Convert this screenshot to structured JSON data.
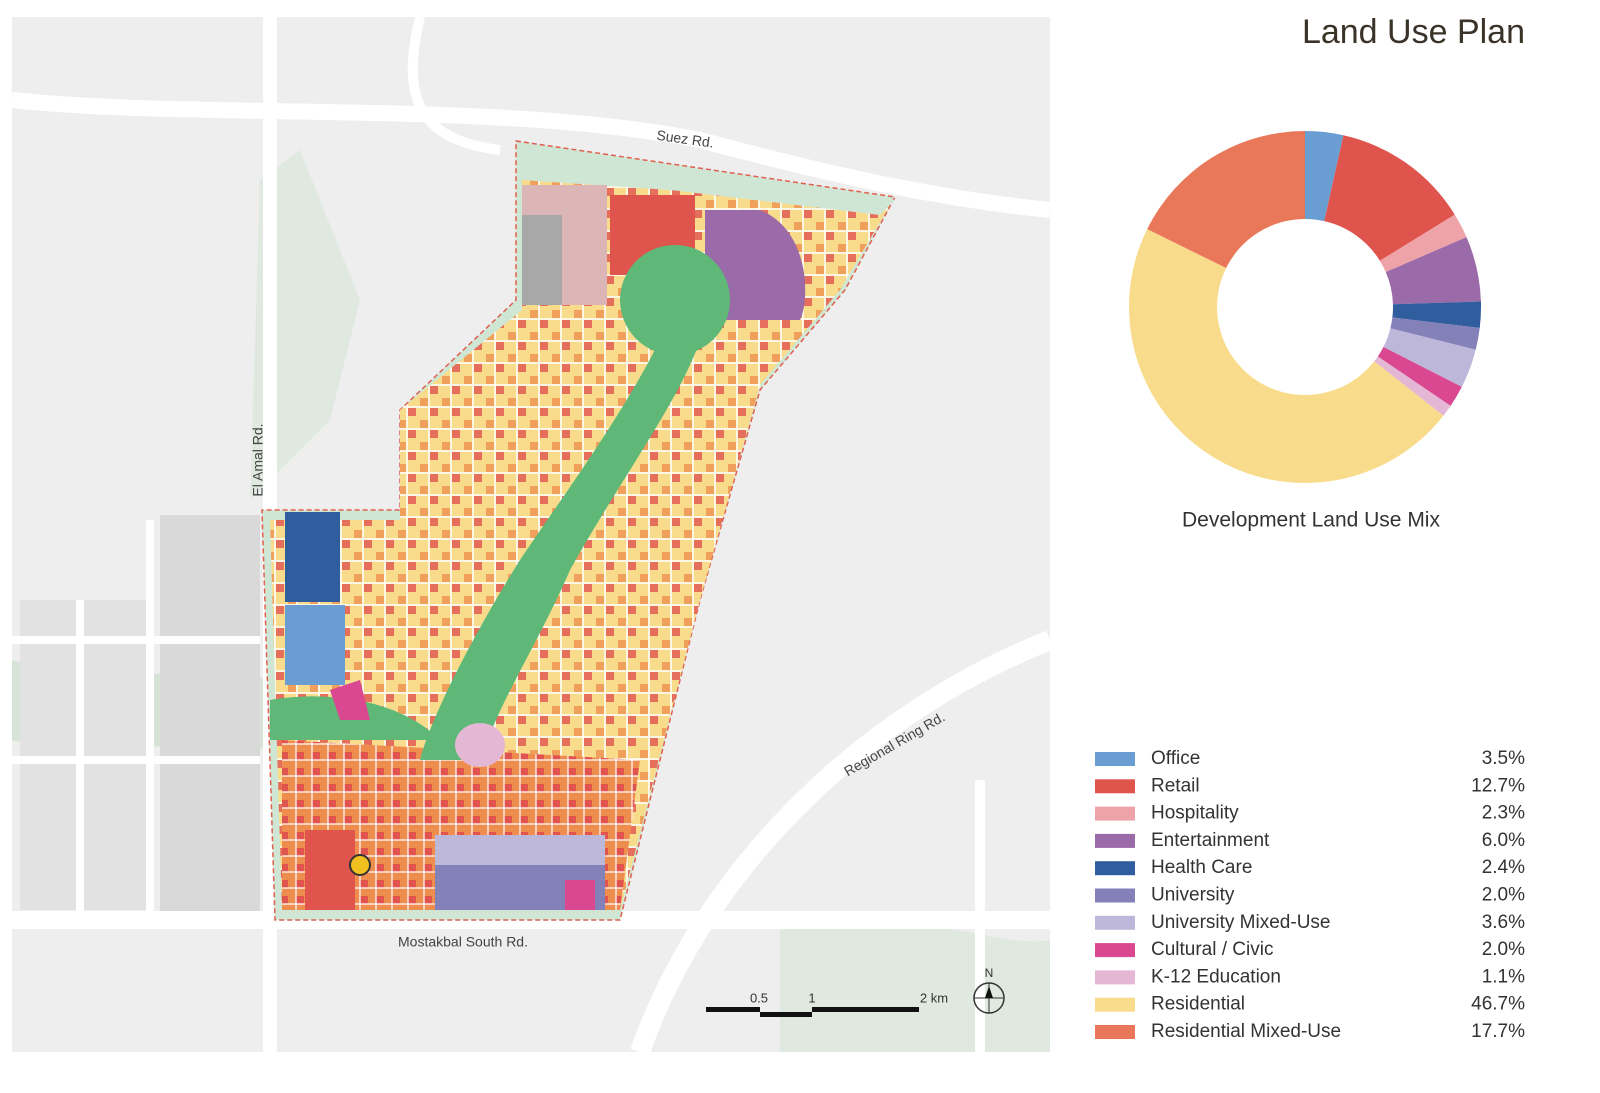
{
  "title": "Land Use Plan",
  "map": {
    "roads": [
      "Suez Rd.",
      "El Amal Rd.",
      "Regional Ring Rd.",
      "Mostakbal South Rd."
    ],
    "scale_labels": [
      "0.5",
      "1",
      "2 km"
    ],
    "north": "N"
  },
  "chart_data": {
    "type": "donut",
    "caption": "Development Land Use Mix",
    "categories": [
      "Office",
      "Retail",
      "Hospitality",
      "Entertainment",
      "Health Care",
      "University",
      "University Mixed-Use",
      "Cultural / Civic",
      "K-12 Education",
      "Residential",
      "Residential Mixed-Use"
    ],
    "values": [
      3.5,
      12.7,
      2.3,
      6.0,
      2.4,
      2.0,
      3.6,
      2.0,
      1.1,
      46.7,
      17.7
    ],
    "value_labels": [
      "3.5%",
      "12.7%",
      "2.3%",
      "6.0%",
      "2.4%",
      "2.0%",
      "3.6%",
      "2.0%",
      "1.1%",
      "46.7%",
      "17.7%"
    ],
    "colors": [
      "#6a9ed3",
      "#e0544e",
      "#eea3a8",
      "#9b6aa8",
      "#2f5d9e",
      "#8480b8",
      "#bdb8da",
      "#d94890",
      "#e4b8d4",
      "#f8dc8c",
      "#e9785a"
    ]
  }
}
